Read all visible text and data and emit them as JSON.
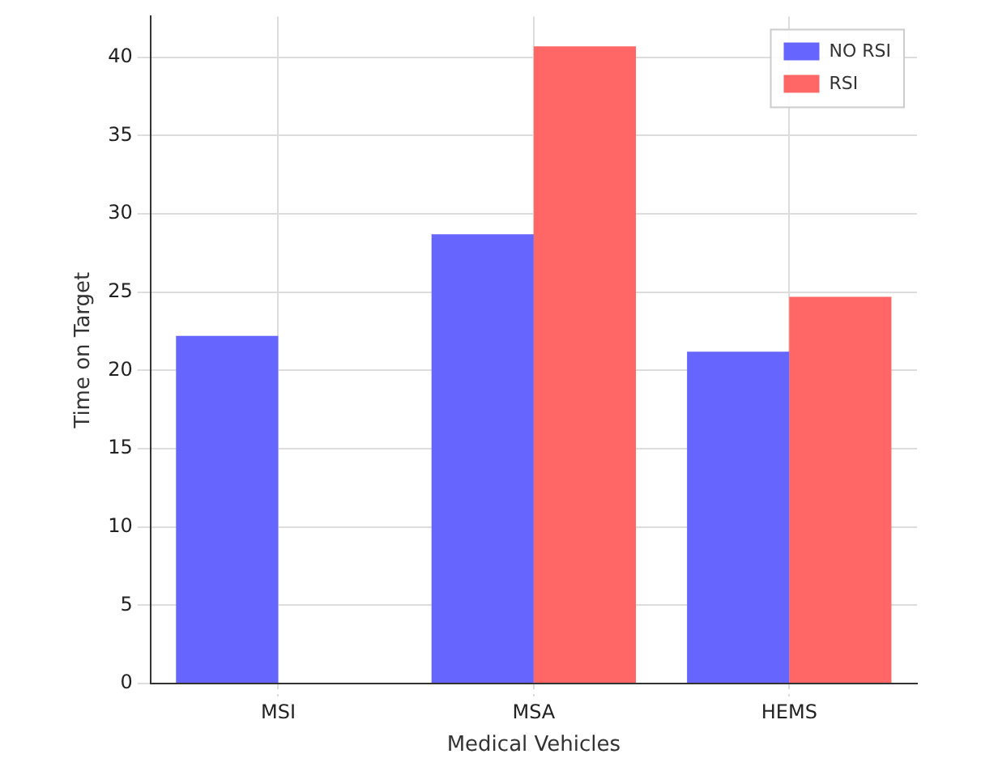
{
  "chart_data": {
    "type": "bar",
    "xlabel": "Medical Vehicles",
    "ylabel": "Time on Target",
    "categories": [
      "MSI",
      "MSA",
      "HEMS"
    ],
    "series": [
      {
        "name": "NO RSI",
        "color": "#6666ff",
        "values": [
          22.2,
          28.7,
          21.2
        ]
      },
      {
        "name": "RSI",
        "color": "#ff6666",
        "values": [
          null,
          40.7,
          24.7
        ]
      }
    ],
    "ylim": [
      0,
      42.6
    ],
    "yticks": [
      0,
      5,
      10,
      15,
      20,
      25,
      30,
      35,
      40
    ],
    "grid": true,
    "legend": "top right"
  }
}
